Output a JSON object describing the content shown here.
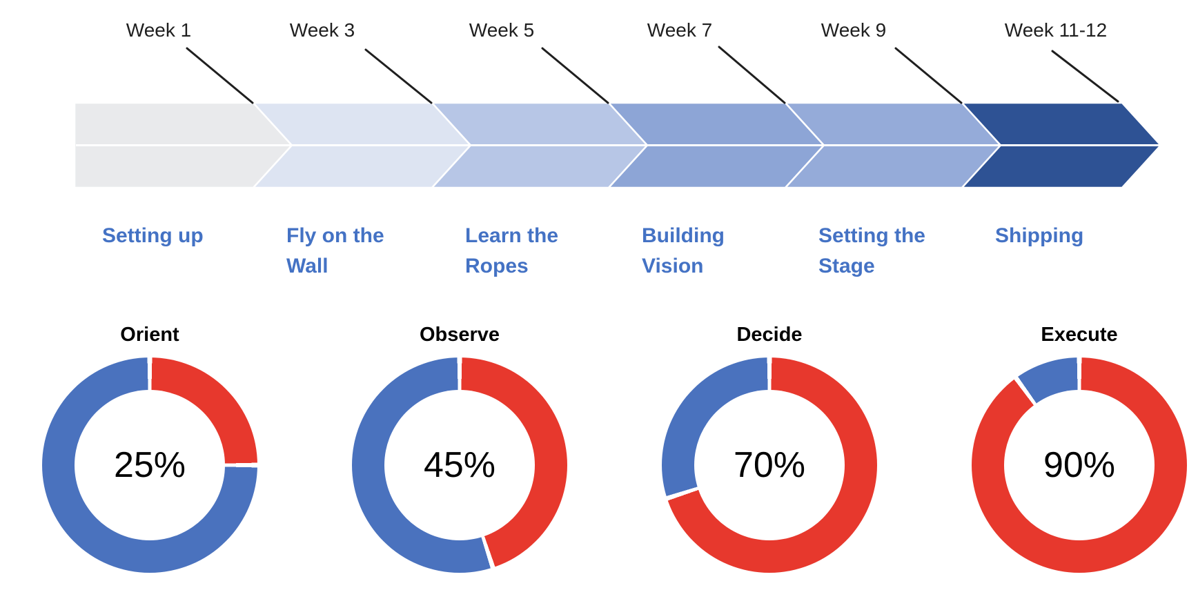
{
  "timeline": {
    "segments": [
      {
        "week": "Week 1",
        "stage": "Setting up",
        "color": "#e9eaec"
      },
      {
        "week": "Week 3",
        "stage": "Fly on the Wall",
        "color": "#dde4f2"
      },
      {
        "week": "Week 5",
        "stage": "Learn the Ropes",
        "color": "#b7c6e6"
      },
      {
        "week": "Week 7",
        "stage": "Building Vision",
        "color": "#8da5d6"
      },
      {
        "week": "Week 9",
        "stage": "Setting the Stage",
        "color": "#95abd9"
      },
      {
        "week": "Week 11-12",
        "stage": "Shipping",
        "color": "#2e5294"
      }
    ],
    "stage_label_color": "#4472c4",
    "callout_line_color": "#1f1f1f",
    "divider_color": "#ffffff"
  },
  "chart_data": {
    "type": "pie",
    "subtype": "donut",
    "direction": "clockwise",
    "start_angle_deg": 0,
    "legend": "none",
    "colors": {
      "progress": "#e7382d",
      "remainder": "#4a72be"
    },
    "charts": [
      {
        "title": "Orient",
        "percent": 25,
        "center_label": "25%",
        "slices": [
          {
            "name": "progress",
            "value": 25
          },
          {
            "name": "remainder",
            "value": 75
          }
        ]
      },
      {
        "title": "Observe",
        "percent": 45,
        "center_label": "45%",
        "slices": [
          {
            "name": "progress",
            "value": 45
          },
          {
            "name": "remainder",
            "value": 55
          }
        ]
      },
      {
        "title": "Decide",
        "percent": 70,
        "center_label": "70%",
        "slices": [
          {
            "name": "progress",
            "value": 70
          },
          {
            "name": "remainder",
            "value": 30
          }
        ]
      },
      {
        "title": "Execute",
        "percent": 90,
        "center_label": "90%",
        "slices": [
          {
            "name": "progress",
            "value": 90
          },
          {
            "name": "remainder",
            "value": 10
          }
        ]
      }
    ]
  }
}
